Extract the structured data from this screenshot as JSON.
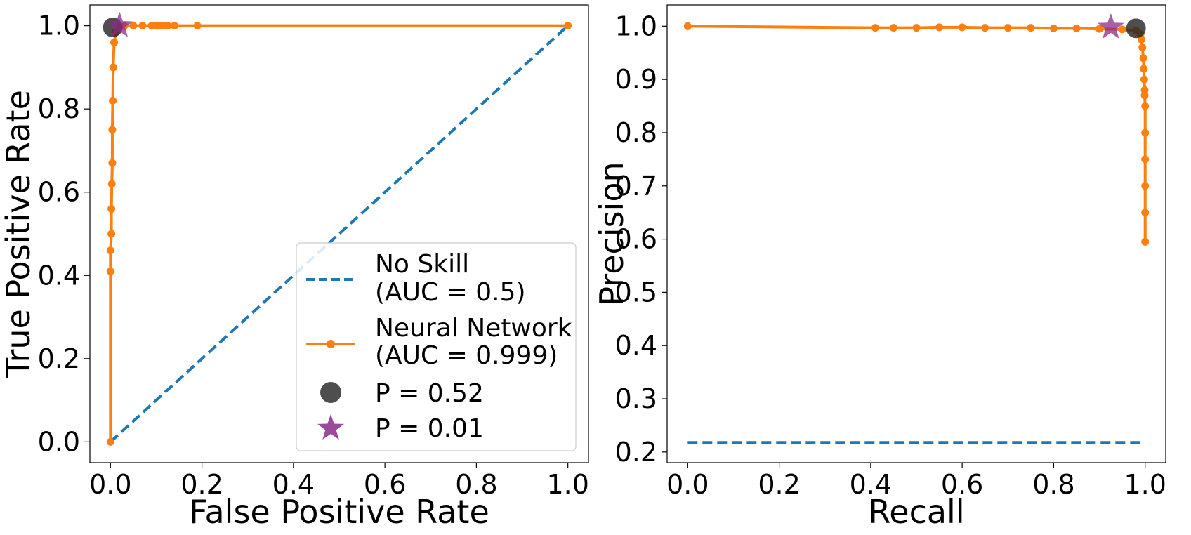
{
  "chart_data": [
    {
      "type": "line",
      "name": "roc",
      "title": "",
      "xlabel": "False Positive Rate",
      "ylabel": "True Positive Rate",
      "xlim": [
        -0.045,
        1.045
      ],
      "ylim": [
        -0.05,
        1.05
      ],
      "xticks": [
        0.0,
        0.2,
        0.4,
        0.6,
        0.8,
        1.0
      ],
      "yticks": [
        0.0,
        0.2,
        0.4,
        0.6,
        0.8,
        1.0
      ],
      "xtick_labels": [
        "0.0",
        "0.2",
        "0.4",
        "0.6",
        "0.8",
        "1.0"
      ],
      "ytick_labels": [
        "0.0",
        "0.2",
        "0.4",
        "0.6",
        "0.8",
        "1.0"
      ],
      "grid": false,
      "legend": {
        "placement": "lower-right",
        "entries": [
          {
            "line1": "No Skill",
            "line2": "(AUC = 0.5)",
            "marker": "dashed-line",
            "color": "#1f77b4"
          },
          {
            "line1": "Neural Network",
            "line2": "(AUC = 0.999)",
            "marker": "line-dot",
            "color": "#ff7f0e"
          },
          {
            "line1": "P = 0.52",
            "marker": "circle",
            "color": "#222222"
          },
          {
            "line1": "P = 0.01",
            "marker": "star",
            "color": "#8b2a8b"
          }
        ]
      },
      "series": [
        {
          "name": "No Skill (AUC = 0.5)",
          "style": "dashed",
          "color": "#1f77b4",
          "x": [
            0.0,
            1.0
          ],
          "y": [
            0.0,
            1.0
          ]
        },
        {
          "name": "Neural Network (AUC = 0.999)",
          "style": "line-dot",
          "color": "#ff7f0e",
          "x": [
            0.0,
            0.0,
            0.0,
            0.002,
            0.002,
            0.003,
            0.004,
            0.004,
            0.005,
            0.006,
            0.008,
            0.012,
            0.02,
            0.03,
            0.05,
            0.07,
            0.09,
            0.1,
            0.11,
            0.12,
            0.125,
            0.14,
            0.19,
            1.0
          ],
          "y": [
            0.0,
            0.41,
            0.46,
            0.5,
            0.56,
            0.62,
            0.67,
            0.75,
            0.82,
            0.9,
            0.96,
            0.985,
            0.997,
            0.999,
            1.0,
            1.0,
            1.0,
            1.0,
            1.0,
            1.0,
            1.0,
            1.0,
            1.0,
            1.0
          ]
        },
        {
          "name": "P = 0.52",
          "style": "marker-circle",
          "color": "#222222",
          "x": [
            0.005
          ],
          "y": [
            0.996
          ]
        },
        {
          "name": "P = 0.01",
          "style": "marker-star",
          "color": "#8b2a8b",
          "x": [
            0.02
          ],
          "y": [
            1.0
          ]
        }
      ]
    },
    {
      "type": "line",
      "name": "pr",
      "title": "",
      "xlabel": "Recall",
      "ylabel": "Precision",
      "xlim": [
        -0.045,
        1.045
      ],
      "ylim": [
        0.18,
        1.04
      ],
      "xticks": [
        0.0,
        0.2,
        0.4,
        0.6,
        0.8,
        1.0
      ],
      "yticks": [
        0.2,
        0.3,
        0.4,
        0.5,
        0.6,
        0.7,
        0.8,
        0.9,
        1.0
      ],
      "xtick_labels": [
        "0.0",
        "0.2",
        "0.4",
        "0.6",
        "0.8",
        "1.0"
      ],
      "ytick_labels": [
        "0.2",
        "0.3",
        "0.4",
        "0.5",
        "0.6",
        "0.7",
        "0.8",
        "0.9",
        "1.0"
      ],
      "grid": false,
      "series": [
        {
          "name": "No Skill",
          "style": "dashed",
          "color": "#1f77b4",
          "x": [
            0.0,
            1.0
          ],
          "y": [
            0.218,
            0.218
          ]
        },
        {
          "name": "Neural Network",
          "style": "line-dot",
          "color": "#ff7f0e",
          "x": [
            0.0,
            0.41,
            0.45,
            0.5,
            0.55,
            0.6,
            0.65,
            0.7,
            0.75,
            0.8,
            0.85,
            0.9,
            0.95,
            0.98,
            0.99,
            0.992,
            0.994,
            0.996,
            0.997,
            0.998,
            0.999,
            0.999,
            1.0,
            1.0,
            1.0,
            1.0,
            1.0,
            1.0
          ],
          "y": [
            1.0,
            0.997,
            0.997,
            0.997,
            0.998,
            0.998,
            0.997,
            0.997,
            0.997,
            0.996,
            0.996,
            0.995,
            0.994,
            0.992,
            0.985,
            0.975,
            0.96,
            0.94,
            0.92,
            0.9,
            0.88,
            0.87,
            0.85,
            0.8,
            0.75,
            0.7,
            0.65,
            0.595
          ]
        },
        {
          "name": "P = 0.52",
          "style": "marker-circle",
          "color": "#222222",
          "x": [
            0.98
          ],
          "y": [
            0.996
          ]
        },
        {
          "name": "P = 0.01",
          "style": "marker-star",
          "color": "#8b2a8b",
          "x": [
            0.925
          ],
          "y": [
            0.998
          ]
        }
      ]
    }
  ]
}
